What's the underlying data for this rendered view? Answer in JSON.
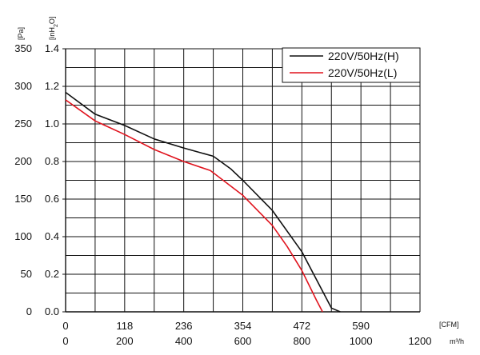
{
  "chart_data": {
    "type": "line",
    "y_axis_left": {
      "label": "[Pa]",
      "min": 0,
      "max": 350,
      "ticks": [
        "350",
        "300",
        "250",
        "200",
        "150",
        "100",
        "50",
        "0"
      ]
    },
    "y_axis_right": {
      "label": "[inH2O]",
      "ticks": [
        "1.4",
        "1.2",
        "1.0",
        "0.8",
        "0.6",
        "0.4",
        "0.2",
        "0.0"
      ]
    },
    "x_axis_top": {
      "label": "[CFM]",
      "ticks": [
        "0",
        "118",
        "236",
        "354",
        "472",
        "590"
      ]
    },
    "x_axis_bottom": {
      "label": "m³/h",
      "min": 0,
      "max": 1200,
      "ticks": [
        "0",
        "200",
        "400",
        "600",
        "800",
        "1000",
        "1200"
      ]
    },
    "grid": true,
    "legend_position": "top-right",
    "series": [
      {
        "name": "220V/50Hz(H)",
        "color": "#111111",
        "points": [
          [
            0,
            292
          ],
          [
            100,
            263
          ],
          [
            200,
            248
          ],
          [
            300,
            230
          ],
          [
            400,
            218
          ],
          [
            500,
            207
          ],
          [
            560,
            190
          ],
          [
            600,
            175
          ],
          [
            700,
            135
          ],
          [
            800,
            80
          ],
          [
            900,
            5
          ],
          [
            930,
            0
          ]
        ]
      },
      {
        "name": "220V/50Hz(L)",
        "color": "#e0141e",
        "points": [
          [
            0,
            282
          ],
          [
            100,
            254
          ],
          [
            200,
            236
          ],
          [
            300,
            216
          ],
          [
            400,
            200
          ],
          [
            490,
            188
          ],
          [
            600,
            155
          ],
          [
            700,
            115
          ],
          [
            750,
            87
          ],
          [
            800,
            55
          ],
          [
            850,
            15
          ],
          [
            870,
            0
          ]
        ]
      }
    ]
  }
}
